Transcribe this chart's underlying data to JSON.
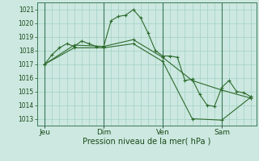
{
  "background_color": "#cce8e0",
  "plot_bg_color": "#cce8e0",
  "grid_color": "#99ccbf",
  "line_color": "#2d6b2d",
  "marker_color": "#2d6b2d",
  "xlabel": "Pression niveau de la mer( hPa )",
  "ylim": [
    1012.5,
    1021.5
  ],
  "yticks": [
    1013,
    1014,
    1015,
    1016,
    1017,
    1018,
    1019,
    1020,
    1021
  ],
  "day_labels": [
    "Jeu",
    "Dim",
    "Ven",
    "Sam"
  ],
  "day_positions": [
    0,
    48,
    96,
    144
  ],
  "series1_x": [
    0,
    6,
    12,
    18,
    24,
    30,
    36,
    42,
    48,
    54,
    60,
    66,
    72,
    78,
    84,
    90,
    96,
    102,
    108,
    114,
    120,
    126,
    132,
    138,
    144,
    150,
    156,
    162,
    168
  ],
  "series1_y": [
    1017.0,
    1017.7,
    1018.2,
    1018.5,
    1018.3,
    1018.7,
    1018.5,
    1018.3,
    1018.3,
    1020.2,
    1020.5,
    1020.6,
    1021.0,
    1020.4,
    1019.3,
    1018.0,
    1017.6,
    1017.6,
    1017.5,
    1015.8,
    1015.9,
    1014.8,
    1014.0,
    1013.9,
    1015.3,
    1015.8,
    1015.0,
    1014.9,
    1014.6
  ],
  "series2_x": [
    0,
    24,
    48,
    72,
    96,
    120,
    144,
    168
  ],
  "series2_y": [
    1017.0,
    1018.4,
    1018.3,
    1018.8,
    1017.5,
    1015.8,
    1015.1,
    1014.5
  ],
  "series3_x": [
    0,
    24,
    48,
    72,
    96,
    120,
    144,
    168
  ],
  "series3_y": [
    1017.0,
    1018.2,
    1018.2,
    1018.5,
    1017.2,
    1013.0,
    1012.9,
    1014.6
  ],
  "figsize": [
    3.2,
    2.0
  ],
  "dpi": 100
}
